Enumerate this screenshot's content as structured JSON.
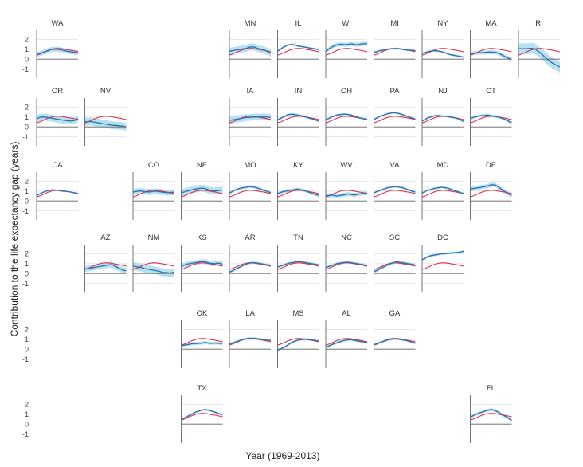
{
  "chart_data": {
    "type": "line",
    "title": "",
    "xlabel": "Year (1969-2013)",
    "ylabel": "Contribution to the life expectancy gap (years)",
    "xlim": [
      1969,
      2013
    ],
    "ylim": [
      -1.6,
      2.6
    ],
    "yticks": [
      -1,
      0,
      1,
      2
    ],
    "grid": true,
    "legend": "none",
    "colors": {
      "reference": "#e0314a",
      "state": "#2f6fb0",
      "band": "#a9dcec",
      "axis": "#666666",
      "grid": "#e4e4e4"
    },
    "years": [
      1969,
      1972,
      1975,
      1978,
      1981,
      1984,
      1987,
      1990,
      1993,
      1996,
      1999,
      2002,
      2005,
      2008,
      2011,
      2013
    ],
    "reference": [
      0.4,
      0.5,
      0.62,
      0.75,
      0.88,
      0.98,
      1.05,
      1.08,
      1.08,
      1.05,
      1.0,
      0.95,
      0.9,
      0.85,
      0.78,
      0.75
    ],
    "panels": [
      {
        "name": "WA",
        "row": 0,
        "col": 0,
        "values": [
          0.45,
          0.55,
          0.65,
          0.75,
          0.85,
          0.95,
          1.0,
          1.0,
          0.98,
          0.92,
          0.85,
          0.8,
          0.75,
          0.7,
          0.68,
          0.65
        ],
        "band": 0.25
      },
      {
        "name": "MN",
        "row": 0,
        "col": 4,
        "values": [
          0.8,
          0.85,
          0.9,
          0.95,
          1.0,
          1.05,
          1.1,
          1.2,
          1.25,
          1.2,
          1.1,
          1.0,
          0.95,
          0.85,
          0.7,
          0.6
        ],
        "band": 0.35
      },
      {
        "name": "IL",
        "row": 0,
        "col": 5,
        "values": [
          0.8,
          1.0,
          1.2,
          1.35,
          1.45,
          1.5,
          1.45,
          1.35,
          1.3,
          1.25,
          1.2,
          1.15,
          1.1,
          1.05,
          1.0,
          0.95
        ],
        "band": 0.1
      },
      {
        "name": "WI",
        "row": 0,
        "col": 6,
        "values": [
          0.8,
          1.0,
          1.2,
          1.35,
          1.45,
          1.5,
          1.5,
          1.45,
          1.5,
          1.55,
          1.5,
          1.45,
          1.5,
          1.55,
          1.55,
          1.6
        ],
        "band": 0.2
      },
      {
        "name": "MI",
        "row": 0,
        "col": 7,
        "values": [
          0.7,
          0.75,
          0.85,
          0.9,
          0.95,
          1.0,
          1.05,
          1.05,
          1.08,
          1.05,
          1.0,
          0.95,
          0.92,
          0.9,
          0.88,
          0.85
        ],
        "band": 0.1
      },
      {
        "name": "NY",
        "row": 0,
        "col": 8,
        "values": [
          0.6,
          0.65,
          0.75,
          0.8,
          0.85,
          0.85,
          0.8,
          0.75,
          0.65,
          0.55,
          0.45,
          0.4,
          0.35,
          0.3,
          0.25,
          0.2
        ],
        "band": 0.1
      },
      {
        "name": "MA",
        "row": 0,
        "col": 9,
        "values": [
          0.55,
          0.6,
          0.62,
          0.65,
          0.65,
          0.68,
          0.7,
          0.72,
          0.7,
          0.68,
          0.6,
          0.45,
          0.3,
          0.15,
          0.05,
          0.0
        ],
        "band": 0.2
      },
      {
        "name": "RI",
        "row": 0,
        "col": 10,
        "values": [
          1.05,
          1.05,
          1.05,
          1.05,
          1.08,
          1.1,
          1.0,
          0.8,
          0.55,
          0.3,
          0.05,
          -0.2,
          -0.4,
          -0.55,
          -0.7,
          -0.8
        ],
        "band": 0.55
      },
      {
        "name": "OR",
        "row": 1,
        "col": 0,
        "values": [
          0.8,
          0.95,
          1.0,
          1.0,
          0.95,
          0.9,
          0.85,
          0.8,
          0.75,
          0.7,
          0.65,
          0.62,
          0.6,
          0.62,
          0.7,
          0.85
        ],
        "band": 0.35
      },
      {
        "name": "NV",
        "row": 1,
        "col": 1,
        "values": [
          0.55,
          0.5,
          0.55,
          0.5,
          0.45,
          0.4,
          0.35,
          0.3,
          0.25,
          0.2,
          0.15,
          0.15,
          0.12,
          0.1,
          0.05,
          0.0
        ],
        "band": 0.4
      },
      {
        "name": "IA",
        "row": 1,
        "col": 4,
        "values": [
          0.65,
          0.7,
          0.75,
          0.8,
          0.85,
          0.9,
          0.95,
          0.95,
          1.0,
          1.0,
          1.0,
          1.0,
          1.0,
          1.0,
          0.98,
          0.95
        ],
        "band": 0.35
      },
      {
        "name": "IN",
        "row": 1,
        "col": 5,
        "values": [
          0.7,
          0.85,
          1.0,
          1.15,
          1.25,
          1.3,
          1.25,
          1.2,
          1.15,
          1.1,
          1.0,
          0.9,
          0.85,
          0.75,
          0.65,
          0.6
        ],
        "band": 0.12
      },
      {
        "name": "OH",
        "row": 1,
        "col": 6,
        "values": [
          0.7,
          0.85,
          1.0,
          1.1,
          1.2,
          1.25,
          1.28,
          1.3,
          1.25,
          1.2,
          1.1,
          1.0,
          0.9,
          0.85,
          0.8,
          0.75
        ],
        "band": 0.1
      },
      {
        "name": "PA",
        "row": 1,
        "col": 7,
        "values": [
          0.75,
          0.9,
          1.05,
          1.15,
          1.25,
          1.35,
          1.4,
          1.45,
          1.4,
          1.35,
          1.25,
          1.15,
          1.05,
          0.95,
          0.85,
          0.8
        ],
        "band": 0.1
      },
      {
        "name": "NJ",
        "row": 1,
        "col": 8,
        "values": [
          0.6,
          0.75,
          0.9,
          1.0,
          1.1,
          1.15,
          1.15,
          1.1,
          1.1,
          1.05,
          1.0,
          0.95,
          0.9,
          0.8,
          0.65,
          0.55
        ],
        "band": 0.1
      },
      {
        "name": "CT",
        "row": 1,
        "col": 9,
        "values": [
          0.85,
          0.95,
          1.05,
          1.1,
          1.15,
          1.15,
          1.2,
          1.15,
          1.1,
          1.05,
          1.0,
          0.9,
          0.8,
          0.65,
          0.5,
          0.45
        ],
        "band": 0.15
      },
      {
        "name": "CA",
        "row": 2,
        "col": 0,
        "values": [
          0.55,
          0.7,
          0.85,
          0.95,
          1.05,
          1.1,
          1.12,
          1.1,
          1.05,
          1.0,
          0.98,
          0.95,
          0.9,
          0.85,
          0.8,
          0.75
        ],
        "band": 0.06
      },
      {
        "name": "CO",
        "row": 2,
        "col": 2,
        "values": [
          0.9,
          0.95,
          1.0,
          1.0,
          0.95,
          0.9,
          0.92,
          0.95,
          1.0,
          0.95,
          0.9,
          0.88,
          0.85,
          0.85,
          0.88,
          0.9
        ],
        "band": 0.3
      },
      {
        "name": "NE",
        "row": 2,
        "col": 3,
        "values": [
          0.85,
          0.9,
          1.0,
          1.05,
          1.15,
          1.2,
          1.25,
          1.3,
          1.28,
          1.2,
          1.1,
          1.05,
          1.0,
          1.05,
          1.1,
          1.1
        ],
        "band": 0.35
      },
      {
        "name": "MO",
        "row": 2,
        "col": 4,
        "values": [
          0.8,
          0.95,
          1.1,
          1.2,
          1.3,
          1.35,
          1.4,
          1.45,
          1.45,
          1.4,
          1.3,
          1.2,
          1.1,
          1.0,
          0.9,
          0.85
        ],
        "band": 0.15
      },
      {
        "name": "KY",
        "row": 2,
        "col": 5,
        "values": [
          0.75,
          0.85,
          0.95,
          1.0,
          1.05,
          1.1,
          1.15,
          1.2,
          1.15,
          1.1,
          1.0,
          0.9,
          0.8,
          0.7,
          0.6,
          0.55
        ],
        "band": 0.15
      },
      {
        "name": "WV",
        "row": 2,
        "col": 6,
        "values": [
          0.55,
          0.55,
          0.6,
          0.55,
          0.5,
          0.55,
          0.6,
          0.65,
          0.7,
          0.65,
          0.6,
          0.65,
          0.7,
          0.75,
          0.75,
          0.8
        ],
        "band": 0.2
      },
      {
        "name": "VA",
        "row": 2,
        "col": 7,
        "values": [
          0.8,
          0.95,
          1.05,
          1.15,
          1.25,
          1.35,
          1.4,
          1.45,
          1.45,
          1.4,
          1.35,
          1.25,
          1.15,
          1.05,
          0.95,
          0.9
        ],
        "band": 0.12
      },
      {
        "name": "MD",
        "row": 2,
        "col": 8,
        "values": [
          0.8,
          0.95,
          1.1,
          1.15,
          1.25,
          1.3,
          1.35,
          1.4,
          1.35,
          1.3,
          1.2,
          1.1,
          1.0,
          0.9,
          0.8,
          0.75
        ],
        "band": 0.12
      },
      {
        "name": "DE",
        "row": 2,
        "col": 9,
        "values": [
          1.2,
          1.25,
          1.3,
          1.35,
          1.4,
          1.45,
          1.5,
          1.6,
          1.65,
          1.6,
          1.4,
          1.2,
          1.0,
          0.8,
          0.65,
          0.55
        ],
        "band": 0.22
      },
      {
        "name": "AZ",
        "row": 3,
        "col": 1,
        "values": [
          0.45,
          0.5,
          0.55,
          0.6,
          0.65,
          0.7,
          0.75,
          0.8,
          0.85,
          0.9,
          0.85,
          0.7,
          0.55,
          0.4,
          0.3,
          0.3
        ],
        "band": 0.3
      },
      {
        "name": "NM",
        "row": 3,
        "col": 2,
        "values": [
          0.75,
          0.7,
          0.65,
          0.6,
          0.5,
          0.45,
          0.4,
          0.35,
          0.3,
          0.25,
          0.15,
          0.1,
          0.1,
          0.05,
          0.1,
          0.15
        ],
        "band": 0.4
      },
      {
        "name": "KS",
        "row": 3,
        "col": 3,
        "values": [
          0.75,
          0.85,
          0.95,
          1.0,
          1.05,
          1.1,
          1.15,
          1.2,
          1.2,
          1.15,
          1.05,
          1.0,
          1.0,
          1.05,
          1.0,
          0.95
        ],
        "band": 0.25
      },
      {
        "name": "AR",
        "row": 3,
        "col": 4,
        "values": [
          0.15,
          0.25,
          0.4,
          0.55,
          0.7,
          0.85,
          0.95,
          1.05,
          1.1,
          1.1,
          1.05,
          1.0,
          0.95,
          0.9,
          0.85,
          0.8
        ],
        "band": 0.12
      },
      {
        "name": "TN",
        "row": 3,
        "col": 5,
        "values": [
          0.65,
          0.75,
          0.85,
          0.95,
          1.05,
          1.1,
          1.15,
          1.2,
          1.2,
          1.15,
          1.1,
          1.05,
          1.0,
          0.95,
          0.9,
          0.85
        ],
        "band": 0.12
      },
      {
        "name": "NC",
        "row": 3,
        "col": 6,
        "values": [
          0.6,
          0.7,
          0.8,
          0.9,
          1.0,
          1.05,
          1.1,
          1.15,
          1.15,
          1.1,
          1.05,
          1.0,
          0.95,
          0.9,
          0.85,
          0.8
        ],
        "band": 0.12
      },
      {
        "name": "SC",
        "row": 3,
        "col": 7,
        "values": [
          0.2,
          0.3,
          0.45,
          0.6,
          0.75,
          0.9,
          1.0,
          1.1,
          1.2,
          1.15,
          1.1,
          1.05,
          1.0,
          0.95,
          0.9,
          0.85
        ],
        "band": 0.15
      },
      {
        "name": "DC",
        "row": 3,
        "col": 8,
        "values": [
          1.4,
          1.55,
          1.7,
          1.8,
          1.85,
          1.9,
          1.95,
          2.0,
          2.0,
          2.05,
          2.05,
          2.1,
          2.1,
          2.15,
          2.2,
          2.25
        ],
        "band": 0.12
      },
      {
        "name": "OK",
        "row": 4,
        "col": 3,
        "values": [
          0.35,
          0.4,
          0.45,
          0.5,
          0.55,
          0.55,
          0.6,
          0.6,
          0.65,
          0.65,
          0.6,
          0.6,
          0.62,
          0.6,
          0.58,
          0.6
        ],
        "band": 0.15
      },
      {
        "name": "LA",
        "row": 4,
        "col": 4,
        "values": [
          0.5,
          0.6,
          0.7,
          0.8,
          0.9,
          1.0,
          1.05,
          1.1,
          1.1,
          1.08,
          1.05,
          1.0,
          0.95,
          0.92,
          0.9,
          0.88
        ],
        "band": 0.12
      },
      {
        "name": "MS",
        "row": 4,
        "col": 5,
        "values": [
          -0.1,
          0.0,
          0.15,
          0.3,
          0.5,
          0.65,
          0.8,
          0.9,
          0.95,
          0.98,
          1.0,
          0.98,
          0.95,
          0.9,
          0.85,
          0.8
        ],
        "band": 0.12
      },
      {
        "name": "AL",
        "row": 4,
        "col": 6,
        "values": [
          0.2,
          0.3,
          0.45,
          0.55,
          0.65,
          0.75,
          0.85,
          0.9,
          0.95,
          0.95,
          0.9,
          0.85,
          0.8,
          0.75,
          0.7,
          0.65
        ],
        "band": 0.12
      },
      {
        "name": "GA",
        "row": 4,
        "col": 7,
        "values": [
          0.45,
          0.55,
          0.65,
          0.75,
          0.85,
          0.95,
          1.0,
          1.05,
          1.05,
          1.0,
          0.95,
          0.9,
          0.85,
          0.75,
          0.65,
          0.6
        ],
        "band": 0.12
      },
      {
        "name": "TX",
        "row": 5,
        "col": 3,
        "values": [
          0.5,
          0.6,
          0.75,
          0.9,
          1.05,
          1.2,
          1.3,
          1.4,
          1.45,
          1.45,
          1.4,
          1.3,
          1.2,
          1.1,
          1.0,
          0.95
        ],
        "band": 0.1
      },
      {
        "name": "FL",
        "row": 5,
        "col": 9,
        "values": [
          0.7,
          0.85,
          1.0,
          1.1,
          1.2,
          1.3,
          1.4,
          1.45,
          1.45,
          1.35,
          1.2,
          1.0,
          0.85,
          0.7,
          0.5,
          0.35
        ],
        "band": 0.15
      }
    ]
  }
}
